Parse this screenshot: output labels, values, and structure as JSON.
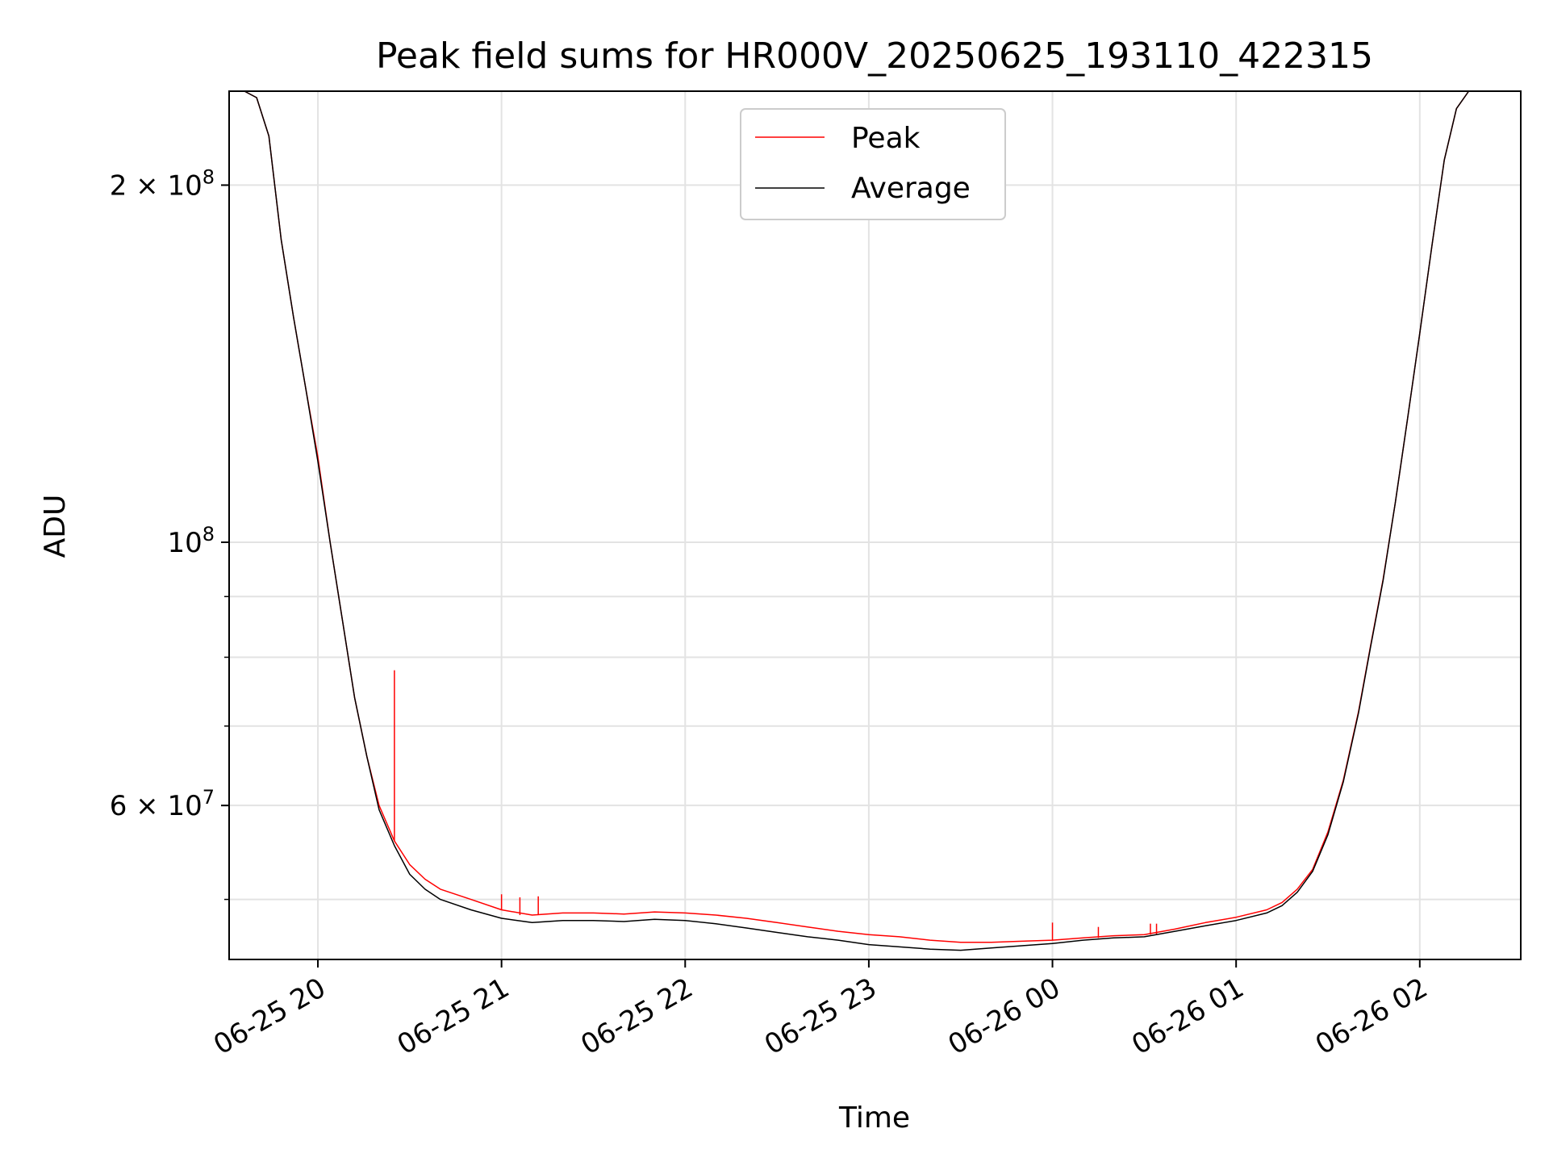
{
  "chart_data": {
    "type": "line",
    "title": "Peak field sums for HR000V_20250625_193110_422315",
    "xlabel": "Time",
    "ylabel": "ADU",
    "y_scale": "log",
    "ylim": [
      44500000,
      240000000
    ],
    "xlim": [
      "2025-06-25 19:31",
      "2025-06-26 02:33"
    ],
    "grid": true,
    "legend_position": "top-center",
    "x_ticks": [
      {
        "value": "2025-06-25 20:00",
        "label": "06-25 20"
      },
      {
        "value": "2025-06-25 21:00",
        "label": "06-25 21"
      },
      {
        "value": "2025-06-25 22:00",
        "label": "06-25 22"
      },
      {
        "value": "2025-06-25 23:00",
        "label": "06-25 23"
      },
      {
        "value": "2025-06-26 00:00",
        "label": "06-26 00"
      },
      {
        "value": "2025-06-26 01:00",
        "label": "06-26 01"
      },
      {
        "value": "2025-06-26 02:00",
        "label": "06-26 02"
      }
    ],
    "y_ticks": [
      {
        "value": 200000000,
        "mantissa": "2",
        "times": "×",
        "base": "10",
        "exp": "8"
      },
      {
        "value": 100000000,
        "mantissa": "",
        "times": "",
        "base": "10",
        "exp": "8"
      },
      {
        "value": 60000000,
        "mantissa": "6",
        "times": "×",
        "base": "10",
        "exp": "7"
      }
    ],
    "y_minor_ticks": [
      50000000,
      70000000,
      80000000,
      90000000
    ],
    "series": [
      {
        "name": "Peak",
        "color": "#ff0000",
        "x": [
          "2025-06-25 19:31",
          "2025-06-25 19:36",
          "2025-06-25 19:40",
          "2025-06-25 19:44",
          "2025-06-25 19:48",
          "2025-06-25 19:52",
          "2025-06-25 19:56",
          "2025-06-25 20:00",
          "2025-06-25 20:04",
          "2025-06-25 20:08",
          "2025-06-25 20:12",
          "2025-06-25 20:16",
          "2025-06-25 20:20",
          "2025-06-25 20:25",
          "2025-06-25 20:30",
          "2025-06-25 20:35",
          "2025-06-25 20:40",
          "2025-06-25 20:50",
          "2025-06-25 21:00",
          "2025-06-25 21:10",
          "2025-06-25 21:20",
          "2025-06-25 21:30",
          "2025-06-25 21:40",
          "2025-06-25 21:50",
          "2025-06-25 22:00",
          "2025-06-25 22:10",
          "2025-06-25 22:20",
          "2025-06-25 22:30",
          "2025-06-25 22:40",
          "2025-06-25 22:50",
          "2025-06-25 23:00",
          "2025-06-25 23:10",
          "2025-06-25 23:20",
          "2025-06-25 23:30",
          "2025-06-25 23:40",
          "2025-06-25 23:50",
          "2025-06-26 00:00",
          "2025-06-26 00:10",
          "2025-06-26 00:20",
          "2025-06-26 00:30",
          "2025-06-26 00:40",
          "2025-06-26 00:50",
          "2025-06-26 01:00",
          "2025-06-26 01:10",
          "2025-06-26 01:15",
          "2025-06-26 01:20",
          "2025-06-26 01:25",
          "2025-06-26 01:30",
          "2025-06-26 01:35",
          "2025-06-26 01:40",
          "2025-06-26 01:44",
          "2025-06-26 01:48",
          "2025-06-26 01:52",
          "2025-06-26 01:56",
          "2025-06-26 02:00",
          "2025-06-26 02:04",
          "2025-06-26 02:08",
          "2025-06-26 02:12",
          "2025-06-26 02:16",
          "2025-06-26 02:20"
        ],
        "y": [
          240000000,
          240000000,
          237000000,
          220000000,
          180000000,
          155000000,
          135000000,
          118000000,
          100000000,
          86000000,
          74000000,
          66000000,
          60000000,
          56000000,
          53500000,
          52000000,
          51000000,
          50000000,
          49000000,
          48500000,
          48700000,
          48700000,
          48600000,
          48800000,
          48700000,
          48500000,
          48200000,
          47800000,
          47400000,
          47000000,
          46700000,
          46500000,
          46200000,
          46000000,
          46000000,
          46100000,
          46200000,
          46400000,
          46600000,
          46700000,
          47200000,
          47800000,
          48300000,
          49000000,
          49700000,
          51000000,
          53000000,
          57000000,
          63000000,
          72000000,
          82000000,
          93000000,
          108000000,
          127000000,
          150000000,
          178000000,
          210000000,
          232000000,
          240000000,
          240000000
        ],
        "spikes": [
          {
            "x": "2025-06-25 20:25",
            "y": 78000000
          },
          {
            "x": "2025-06-25 21:00",
            "y": 50500000
          },
          {
            "x": "2025-06-25 21:06",
            "y": 50200000
          },
          {
            "x": "2025-06-25 21:12",
            "y": 50300000
          },
          {
            "x": "2025-06-26 00:00",
            "y": 47800000
          },
          {
            "x": "2025-06-26 00:15",
            "y": 47400000
          },
          {
            "x": "2025-06-26 00:32",
            "y": 47700000
          },
          {
            "x": "2025-06-26 00:34",
            "y": 47700000
          }
        ]
      },
      {
        "name": "Average",
        "color": "#000000",
        "x": [
          "2025-06-25 19:31",
          "2025-06-25 19:36",
          "2025-06-25 19:40",
          "2025-06-25 19:44",
          "2025-06-25 19:48",
          "2025-06-25 19:52",
          "2025-06-25 19:56",
          "2025-06-25 20:00",
          "2025-06-25 20:04",
          "2025-06-25 20:08",
          "2025-06-25 20:12",
          "2025-06-25 20:16",
          "2025-06-25 20:20",
          "2025-06-25 20:25",
          "2025-06-25 20:30",
          "2025-06-25 20:35",
          "2025-06-25 20:40",
          "2025-06-25 20:50",
          "2025-06-25 21:00",
          "2025-06-25 21:10",
          "2025-06-25 21:20",
          "2025-06-25 21:30",
          "2025-06-25 21:40",
          "2025-06-25 21:50",
          "2025-06-25 22:00",
          "2025-06-25 22:10",
          "2025-06-25 22:20",
          "2025-06-25 22:30",
          "2025-06-25 22:40",
          "2025-06-25 22:50",
          "2025-06-25 23:00",
          "2025-06-25 23:10",
          "2025-06-25 23:20",
          "2025-06-25 23:30",
          "2025-06-25 23:40",
          "2025-06-25 23:50",
          "2025-06-26 00:00",
          "2025-06-26 00:10",
          "2025-06-26 00:20",
          "2025-06-26 00:30",
          "2025-06-26 00:40",
          "2025-06-26 00:50",
          "2025-06-26 01:00",
          "2025-06-26 01:10",
          "2025-06-26 01:15",
          "2025-06-26 01:20",
          "2025-06-26 01:25",
          "2025-06-26 01:30",
          "2025-06-26 01:35",
          "2025-06-26 01:40",
          "2025-06-26 01:44",
          "2025-06-26 01:48",
          "2025-06-26 01:52",
          "2025-06-26 01:56",
          "2025-06-26 02:00",
          "2025-06-26 02:04",
          "2025-06-26 02:08",
          "2025-06-26 02:12",
          "2025-06-26 02:16",
          "2025-06-26 02:20"
        ],
        "y": [
          240000000,
          240000000,
          237000000,
          220000000,
          180000000,
          155000000,
          135000000,
          117000000,
          100000000,
          86000000,
          74000000,
          66000000,
          59500000,
          55500000,
          52500000,
          51000000,
          50000000,
          49000000,
          48200000,
          47800000,
          48000000,
          48000000,
          47900000,
          48100000,
          48000000,
          47700000,
          47300000,
          46900000,
          46500000,
          46200000,
          45800000,
          45600000,
          45400000,
          45300000,
          45500000,
          45700000,
          45900000,
          46200000,
          46400000,
          46500000,
          47000000,
          47500000,
          48000000,
          48700000,
          49400000,
          50700000,
          52800000,
          56700000,
          62800000,
          71800000,
          81800000,
          92800000,
          108000000,
          127000000,
          150000000,
          178000000,
          210000000,
          232000000,
          240000000,
          240000000
        ]
      }
    ]
  }
}
